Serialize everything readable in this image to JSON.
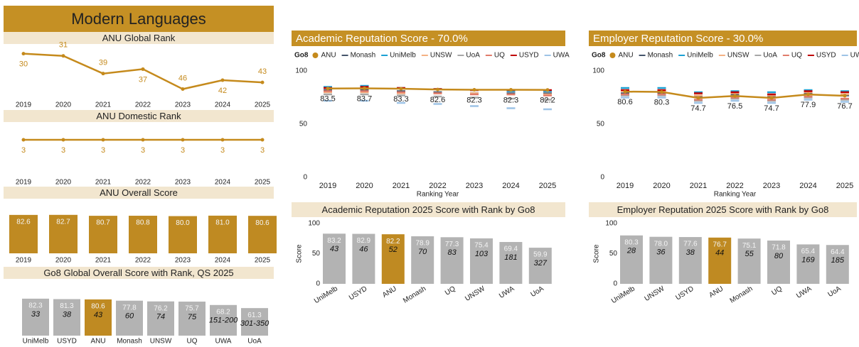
{
  "title": "Modern Languages",
  "chart_data": [
    {
      "type": "line",
      "title": "ANU Global Rank",
      "categories": [
        "2019",
        "2020",
        "2021",
        "2022",
        "2023",
        "2024",
        "2025"
      ],
      "values": [
        30,
        31,
        39,
        37,
        46,
        42,
        43
      ],
      "color": "#c58a1c",
      "ylim": [
        50,
        25
      ]
    },
    {
      "type": "line",
      "title": "ANU Domestic Rank",
      "categories": [
        "2019",
        "2020",
        "2021",
        "2022",
        "2023",
        "2024",
        "2025"
      ],
      "values": [
        3,
        3,
        3,
        3,
        3,
        3,
        3
      ],
      "color": "#c58a1c",
      "ylim": [
        4,
        2
      ]
    },
    {
      "type": "bar",
      "title": "ANU Overall Score",
      "categories": [
        "2019",
        "2020",
        "2021",
        "2022",
        "2023",
        "2024",
        "2025"
      ],
      "values": [
        82.6,
        82.7,
        80.7,
        80.8,
        80,
        81,
        80.6
      ],
      "value_labels": [
        "82.6",
        "82.7",
        "80.7",
        "80.8",
        "80.0",
        "81.0",
        "80.6"
      ],
      "color": "#bf8a22",
      "ylim": [
        0,
        90
      ]
    },
    {
      "type": "bar",
      "title": "Go8 Global Overall Score with Rank, QS 2025",
      "categories": [
        "UniMelb",
        "USYD",
        "ANU",
        "Monash",
        "UNSW",
        "UQ",
        "UWA",
        "UoA"
      ],
      "values": [
        82.3,
        81.3,
        80.6,
        77.8,
        76.2,
        75.7,
        68.2,
        61.3
      ],
      "ranks": [
        33,
        38,
        43,
        60,
        74,
        75,
        "151-200",
        "301-350"
      ],
      "colors": [
        "#b3b3b3",
        "#b3b3b3",
        "#bf8a22",
        "#b3b3b3",
        "#b3b3b3",
        "#b3b3b3",
        "#b3b3b3",
        "#b3b3b3"
      ],
      "ylim": [
        0,
        90
      ]
    },
    {
      "type": "line",
      "title": "Academic Reputation Score - 70.0%",
      "legend_title": "Go8",
      "x_label": "Ranking Year",
      "categories": [
        "2019",
        "2020",
        "2021",
        "2022",
        "2023",
        "2024",
        "2025"
      ],
      "ylim": [
        0,
        100
      ],
      "yticks": [
        0,
        50,
        100
      ],
      "series": [
        {
          "name": "ANU",
          "color": "#c58a1c",
          "style": "line",
          "values": [
            83.5,
            83.7,
            83.3,
            82.6,
            82.3,
            82.3,
            82.2
          ]
        },
        {
          "name": "Monash",
          "color": "#44546a",
          "style": "marker",
          "values": [
            82,
            82,
            81,
            80,
            79,
            79,
            79
          ]
        },
        {
          "name": "UniMelb",
          "color": "#1ba1d4",
          "style": "marker",
          "values": [
            85,
            86,
            84,
            83,
            82,
            81,
            81
          ]
        },
        {
          "name": "UNSW",
          "color": "#f4b183",
          "style": "marker",
          "values": [
            80,
            80,
            79,
            79,
            79,
            78,
            78
          ]
        },
        {
          "name": "UoA",
          "color": "#a6a6a6",
          "style": "marker",
          "values": [
            78,
            78,
            77,
            76,
            75,
            74,
            73
          ]
        },
        {
          "name": "UQ",
          "color": "#e07b6a",
          "style": "marker",
          "values": [
            81,
            81,
            80,
            79,
            78,
            78,
            77
          ]
        },
        {
          "name": "USYD",
          "color": "#c00000",
          "style": "marker",
          "values": [
            84,
            85,
            84,
            83,
            82,
            82,
            82
          ]
        },
        {
          "name": "UWA",
          "color": "#9dc3e6",
          "style": "marker",
          "values": [
            72,
            72,
            70,
            69,
            67,
            65,
            64
          ]
        }
      ]
    },
    {
      "type": "line",
      "title": "Employer Reputation Score - 30.0%",
      "legend_title": "Go8",
      "x_label": "Ranking Year",
      "categories": [
        "2019",
        "2020",
        "2021",
        "2022",
        "2023",
        "2024",
        "2025"
      ],
      "ylim": [
        0,
        100
      ],
      "yticks": [
        0,
        50,
        100
      ],
      "series": [
        {
          "name": "ANU",
          "color": "#c58a1c",
          "style": "line",
          "values": [
            80.6,
            80.3,
            74.7,
            76.5,
            74.7,
            77.9,
            76.7
          ]
        },
        {
          "name": "Monash",
          "color": "#44546a",
          "style": "marker",
          "values": [
            79,
            79,
            76,
            78,
            76,
            79,
            77
          ]
        },
        {
          "name": "UniMelb",
          "color": "#1ba1d4",
          "style": "marker",
          "values": [
            84,
            84,
            80,
            81,
            80,
            82,
            81
          ]
        },
        {
          "name": "UNSW",
          "color": "#f4b183",
          "style": "marker",
          "values": [
            81,
            81,
            77,
            79,
            77,
            80,
            78
          ]
        },
        {
          "name": "UoA",
          "color": "#a6a6a6",
          "style": "marker",
          "values": [
            77,
            77,
            72,
            74,
            72,
            75,
            73
          ]
        },
        {
          "name": "UQ",
          "color": "#e07b6a",
          "style": "marker",
          "values": [
            78,
            78,
            73,
            75,
            73,
            76,
            74
          ]
        },
        {
          "name": "USYD",
          "color": "#c00000",
          "style": "marker",
          "values": [
            82,
            82,
            79,
            80,
            78,
            81,
            80
          ]
        },
        {
          "name": "UWA",
          "color": "#9dc3e6",
          "style": "marker",
          "values": [
            75,
            75,
            70,
            72,
            70,
            73,
            71
          ]
        }
      ]
    },
    {
      "type": "bar",
      "title": "Academic Reputation 2025 Score with Rank by Go8",
      "y_label": "Score",
      "categories": [
        "UniMelb",
        "USYD",
        "ANU",
        "Monash",
        "UQ",
        "UNSW",
        "UWA",
        "UoA"
      ],
      "values": [
        83.2,
        82.9,
        82.2,
        78.9,
        77.3,
        75.4,
        69.4,
        59.9
      ],
      "ranks": [
        43,
        46,
        52,
        70,
        83,
        103,
        181,
        327
      ],
      "colors": [
        "#b3b3b3",
        "#b3b3b3",
        "#bf8a22",
        "#b3b3b3",
        "#b3b3b3",
        "#b3b3b3",
        "#b3b3b3",
        "#b3b3b3"
      ],
      "ylim": [
        0,
        100
      ],
      "yticks": [
        0,
        50,
        100
      ]
    },
    {
      "type": "bar",
      "title": "Employer Reputation 2025 Score with Rank by Go8",
      "y_label": "Score",
      "categories": [
        "UniMelb",
        "UNSW",
        "USYD",
        "ANU",
        "Monash",
        "UQ",
        "UWA",
        "UoA"
      ],
      "values": [
        80.3,
        78,
        77.6,
        76.7,
        75.1,
        71.8,
        65.4,
        64.4
      ],
      "value_labels": [
        "80.3",
        "78.0",
        "77.6",
        "76.7",
        "75.1",
        "71.8",
        "65.4",
        "64.4"
      ],
      "ranks": [
        28,
        36,
        38,
        44,
        55,
        80,
        169,
        185
      ],
      "colors": [
        "#b3b3b3",
        "#b3b3b3",
        "#b3b3b3",
        "#bf8a22",
        "#b3b3b3",
        "#b3b3b3",
        "#b3b3b3",
        "#b3b3b3"
      ],
      "ylim": [
        0,
        100
      ],
      "yticks": [
        0,
        50,
        100
      ]
    }
  ]
}
